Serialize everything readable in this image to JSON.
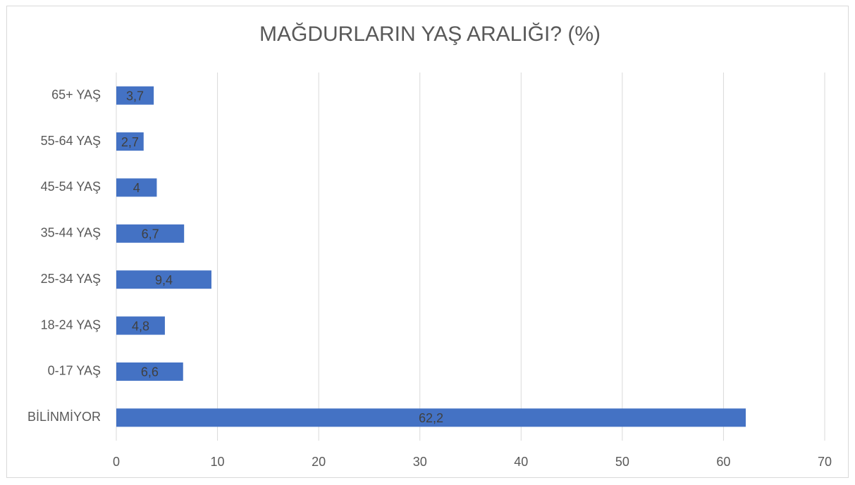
{
  "chart_data": {
    "type": "hbar",
    "title": "MAĞDURLARIN YAŞ ARALIĞI? (%)",
    "categories": [
      "BİLİNMİYOR",
      "0-17 YAŞ",
      "18-24 YAŞ",
      "25-34 YAŞ",
      "35-44 YAŞ",
      "45-54 YAŞ",
      "55-64 YAŞ",
      "65+ YAŞ"
    ],
    "values": [
      62.2,
      6.6,
      4.8,
      9.4,
      6.7,
      4,
      2.7,
      3.7
    ],
    "value_labels": [
      "62,2",
      "6,6",
      "4,8",
      "9,4",
      "6,7",
      "4",
      "2,7",
      "3,7"
    ],
    "color": "#4472c4",
    "xlim": [
      0,
      70
    ],
    "xticks": [
      0,
      10,
      20,
      30,
      40,
      50,
      60,
      70
    ],
    "grid": true
  }
}
